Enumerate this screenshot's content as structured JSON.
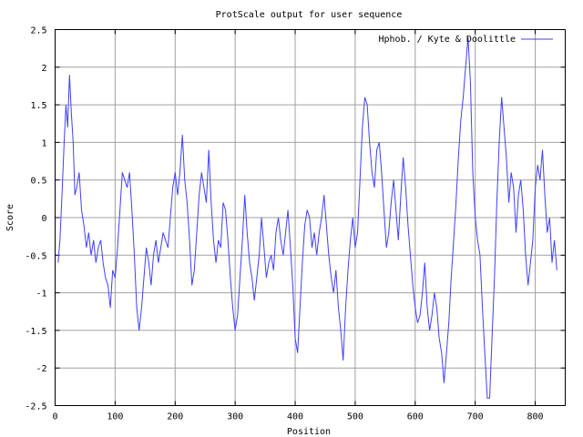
{
  "chart_data": {
    "type": "line",
    "title": "ProtScale output for user sequence",
    "xlabel": "Position",
    "ylabel": "Score",
    "xlim": [
      0,
      850
    ],
    "ylim": [
      -2.5,
      2.5
    ],
    "grid": true,
    "legend_position": "top-right",
    "x_ticks": [
      "0",
      "100",
      "200",
      "300",
      "400",
      "500",
      "600",
      "700",
      "800"
    ],
    "y_ticks": [
      "2.5",
      "2",
      "1.5",
      "1",
      "0.5",
      "0",
      "-0.5",
      "-1",
      "-1.5",
      "-2",
      "-2.5"
    ],
    "series": [
      {
        "name": "Hphob. / Kyte & Doolittle",
        "color": "#4040ff",
        "x": [
          5,
          8,
          12,
          15,
          18,
          21,
          24,
          27,
          30,
          33,
          36,
          40,
          44,
          48,
          52,
          56,
          60,
          64,
          68,
          72,
          76,
          80,
          84,
          88,
          92,
          96,
          100,
          104,
          108,
          112,
          116,
          120,
          124,
          128,
          132,
          136,
          140,
          144,
          148,
          152,
          156,
          160,
          164,
          168,
          172,
          176,
          180,
          184,
          188,
          192,
          196,
          200,
          204,
          208,
          212,
          216,
          220,
          224,
          228,
          232,
          236,
          240,
          244,
          248,
          252,
          256,
          260,
          264,
          268,
          272,
          276,
          280,
          284,
          288,
          292,
          296,
          300,
          304,
          308,
          312,
          316,
          320,
          324,
          328,
          332,
          336,
          340,
          344,
          348,
          352,
          356,
          360,
          364,
          368,
          372,
          376,
          380,
          384,
          388,
          392,
          396,
          400,
          404,
          408,
          412,
          416,
          420,
          424,
          428,
          432,
          436,
          440,
          444,
          448,
          452,
          456,
          460,
          464,
          468,
          472,
          476,
          480,
          484,
          488,
          492,
          496,
          500,
          504,
          508,
          512,
          516,
          520,
          524,
          528,
          532,
          536,
          540,
          544,
          548,
          552,
          556,
          560,
          564,
          568,
          572,
          576,
          580,
          584,
          588,
          592,
          596,
          600,
          604,
          608,
          612,
          616,
          620,
          624,
          628,
          632,
          636,
          640,
          644,
          648,
          652,
          656,
          660,
          664,
          668,
          672,
          676,
          680,
          684,
          688,
          692,
          696,
          700,
          704,
          708,
          712,
          716,
          720,
          724,
          728,
          732,
          736,
          740,
          744,
          748,
          752,
          756,
          760,
          764,
          768,
          772,
          776,
          780,
          784,
          788,
          792,
          796,
          800,
          804,
          808,
          812,
          816,
          820,
          824,
          828,
          832,
          836
        ],
        "values": [
          -0.6,
          -0.3,
          0.4,
          1.0,
          1.5,
          1.2,
          1.9,
          1.4,
          1.0,
          0.3,
          0.4,
          0.6,
          0.1,
          -0.1,
          -0.4,
          -0.2,
          -0.5,
          -0.3,
          -0.6,
          -0.4,
          -0.3,
          -0.6,
          -0.8,
          -0.9,
          -1.2,
          -0.7,
          -0.8,
          -0.4,
          0.1,
          0.6,
          0.5,
          0.4,
          0.6,
          0.1,
          -0.5,
          -1.2,
          -1.5,
          -1.2,
          -0.8,
          -0.4,
          -0.6,
          -0.9,
          -0.5,
          -0.3,
          -0.6,
          -0.4,
          -0.2,
          -0.3,
          -0.4,
          0.0,
          0.4,
          0.6,
          0.3,
          0.6,
          1.1,
          0.5,
          0.2,
          -0.3,
          -0.9,
          -0.7,
          -0.2,
          0.3,
          0.6,
          0.4,
          0.2,
          0.9,
          0.2,
          -0.3,
          -0.6,
          -0.3,
          -0.4,
          0.2,
          0.1,
          -0.3,
          -0.8,
          -1.2,
          -1.5,
          -1.3,
          -0.8,
          -0.3,
          0.3,
          -0.2,
          -0.6,
          -0.8,
          -1.1,
          -0.8,
          -0.5,
          0.0,
          -0.4,
          -0.8,
          -0.6,
          -0.5,
          -0.7,
          -0.2,
          0.0,
          -0.3,
          -0.5,
          -0.2,
          0.1,
          -0.4,
          -0.9,
          -1.6,
          -1.8,
          -1.2,
          -0.6,
          -0.1,
          0.1,
          0.0,
          -0.4,
          -0.2,
          -0.5,
          -0.2,
          0.0,
          0.3,
          -0.1,
          -0.5,
          -0.8,
          -1.0,
          -0.7,
          -1.2,
          -1.5,
          -1.9,
          -1.2,
          -0.7,
          -0.3,
          0.0,
          -0.4,
          -0.2,
          0.5,
          1.2,
          1.6,
          1.5,
          1.0,
          0.6,
          0.4,
          0.9,
          1.0,
          0.6,
          0.1,
          -0.4,
          -0.2,
          0.2,
          0.5,
          0.1,
          -0.3,
          0.3,
          0.8,
          0.4,
          -0.1,
          -0.5,
          -0.9,
          -1.2,
          -1.4,
          -1.3,
          -1.0,
          -0.6,
          -1.2,
          -1.5,
          -1.3,
          -1.0,
          -1.2,
          -1.6,
          -1.8,
          -2.2,
          -1.8,
          -1.4,
          -0.8,
          -0.3,
          0.2,
          0.8,
          1.3,
          1.6,
          2.0,
          2.4,
          1.8,
          0.6,
          0.0,
          -0.3,
          -0.5,
          -1.2,
          -1.8,
          -2.4,
          -2.4,
          -1.6,
          -0.8,
          0.2,
          1.0,
          1.6,
          1.2,
          0.8,
          0.2,
          0.6,
          0.4,
          -0.2,
          0.3,
          0.5,
          0.1,
          -0.5,
          -0.9,
          -0.6,
          -0.3,
          0.4,
          0.7,
          0.5,
          0.9,
          0.3,
          -0.2,
          0.0,
          -0.6,
          -0.3,
          -0.7
        ]
      }
    ]
  }
}
